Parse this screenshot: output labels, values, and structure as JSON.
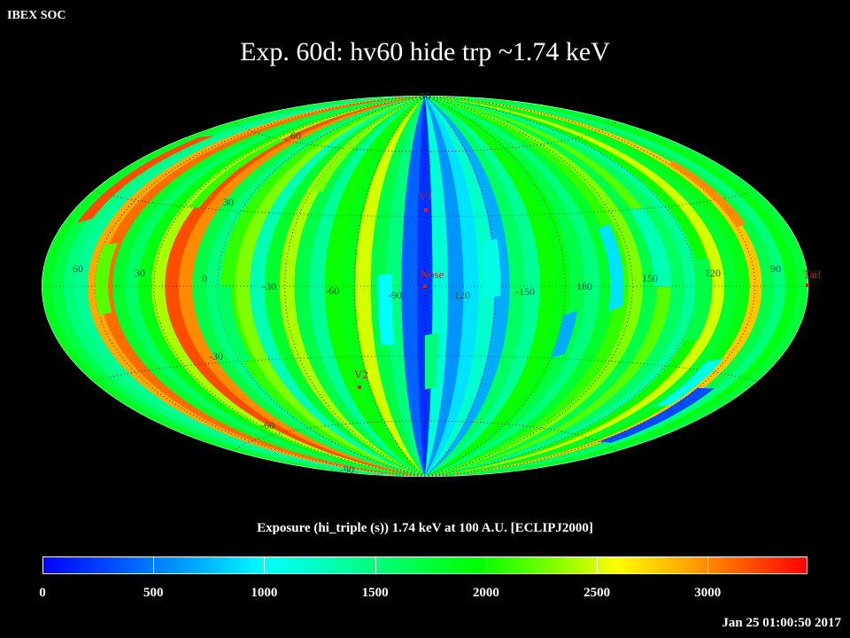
{
  "app_label": "IBEX SOC",
  "title": "Exp.   60d: hv60 hide trp ~1.74 keV",
  "colorbar": {
    "title": "Exposure (hi_triple (s))  1.74 keV at 100 A.U. [ECLIPJ2000]",
    "tick_labels": [
      "0",
      "500",
      "1000",
      "1500",
      "2000",
      "2500",
      "3000"
    ],
    "tick_values": [
      0,
      500,
      1000,
      1500,
      2000,
      2500,
      3000
    ],
    "max": 3450
  },
  "timestamp": "Jan 25 01:00:50 2017",
  "map": {
    "projection": "Hammer-Aitoff",
    "lat_labels_upper": [
      "90",
      "60",
      "30"
    ],
    "lat_labels_lower": [
      "-30",
      "-60",
      "-90"
    ],
    "lon_labels": [
      "60",
      "30",
      "0",
      "-30",
      "-60",
      "-90",
      "-120",
      "-150",
      "180",
      "150",
      "120",
      "90"
    ],
    "markers": [
      {
        "label": "V1",
        "color": "#cc2222"
      },
      {
        "label": "Nose",
        "color": "#cc2222"
      },
      {
        "label": "V2",
        "color": "#cc2222"
      },
      {
        "label": "Tail",
        "color": "#cc2222"
      }
    ],
    "strip_exposures": [
      1850,
      1700,
      1500,
      1400,
      2900,
      3100,
      1800,
      1600,
      1900,
      2400,
      3200,
      3000,
      1700,
      1500,
      2100,
      2300,
      1300,
      1800,
      2400,
      1700,
      1400,
      2000,
      1900,
      2500,
      1700,
      1500,
      400,
      200,
      1150,
      600,
      900,
      1200,
      700,
      1600,
      1400,
      2000,
      1900,
      1700,
      1500,
      1800,
      2100,
      2300,
      1700,
      2200,
      1600,
      1400,
      2000,
      2500,
      1800,
      1900,
      2800,
      1700,
      1500,
      1900,
      1750
    ]
  }
}
